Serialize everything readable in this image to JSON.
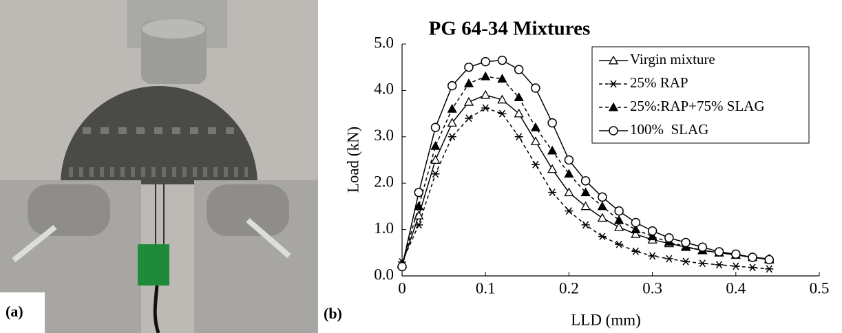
{
  "panel_labels": {
    "a": "(a)",
    "b": "(b)"
  },
  "chart_data": {
    "type": "line",
    "title": "PG 64-34 Mixtures",
    "x_label": "LLD (mm)",
    "y_label": "Load (kN)",
    "x": [
      0,
      0.02,
      0.04,
      0.06,
      0.08,
      0.1,
      0.12,
      0.14,
      0.16,
      0.18,
      0.2,
      0.22,
      0.24,
      0.26,
      0.28,
      0.3,
      0.32,
      0.34,
      0.36,
      0.38,
      0.4,
      0.42,
      0.44
    ],
    "series": [
      {
        "name": "Virgin mixture",
        "color": "#000000",
        "marker": "triangle-open",
        "dashed": false,
        "values": [
          0.25,
          1.3,
          2.5,
          3.3,
          3.75,
          3.9,
          3.8,
          3.5,
          2.9,
          2.3,
          1.8,
          1.5,
          1.25,
          1.05,
          0.9,
          0.78,
          0.7,
          0.62,
          0.55,
          0.5,
          0.45,
          0.4,
          0.37
        ]
      },
      {
        "name": "25% RAP",
        "color": "#000000",
        "marker": "asterisk",
        "dashed": true,
        "values": [
          0.3,
          1.1,
          2.2,
          3.0,
          3.4,
          3.62,
          3.5,
          3.0,
          2.4,
          1.8,
          1.4,
          1.1,
          0.85,
          0.68,
          0.53,
          0.43,
          0.37,
          0.31,
          0.27,
          0.24,
          0.21,
          0.18,
          0.15
        ]
      },
      {
        "name": "25%:RAP+75% SLAG",
        "color": "#000000",
        "marker": "triangle-filled",
        "dashed": true,
        "values": [
          0.25,
          1.5,
          2.8,
          3.6,
          4.15,
          4.3,
          4.25,
          3.85,
          3.2,
          2.7,
          2.2,
          1.8,
          1.5,
          1.2,
          1.0,
          0.85,
          0.73,
          0.63,
          0.55,
          0.5,
          0.45,
          0.4,
          0.35
        ]
      },
      {
        "name": "100%  SLAG",
        "color": "#000000",
        "marker": "circle-open",
        "dashed": false,
        "values": [
          0.2,
          1.8,
          3.2,
          4.1,
          4.5,
          4.62,
          4.65,
          4.45,
          4.05,
          3.3,
          2.5,
          2.05,
          1.7,
          1.4,
          1.15,
          0.97,
          0.82,
          0.72,
          0.62,
          0.52,
          0.47,
          0.4,
          0.35
        ]
      }
    ],
    "xlim": [
      0,
      0.5
    ],
    "xticks": [
      0,
      0.1,
      0.2,
      0.3,
      0.4,
      0.5
    ],
    "ylim": [
      0,
      5
    ],
    "yticks": [
      {
        "value": 0,
        "label": "0.0"
      },
      {
        "value": 1,
        "label": "1.0"
      },
      {
        "value": 2,
        "label": "2.0"
      },
      {
        "value": 3,
        "label": "3.0"
      },
      {
        "value": 4,
        "label": "4.0"
      },
      {
        "value": 5,
        "label": "5.0"
      }
    ],
    "grid": false,
    "legend": "upper right"
  }
}
